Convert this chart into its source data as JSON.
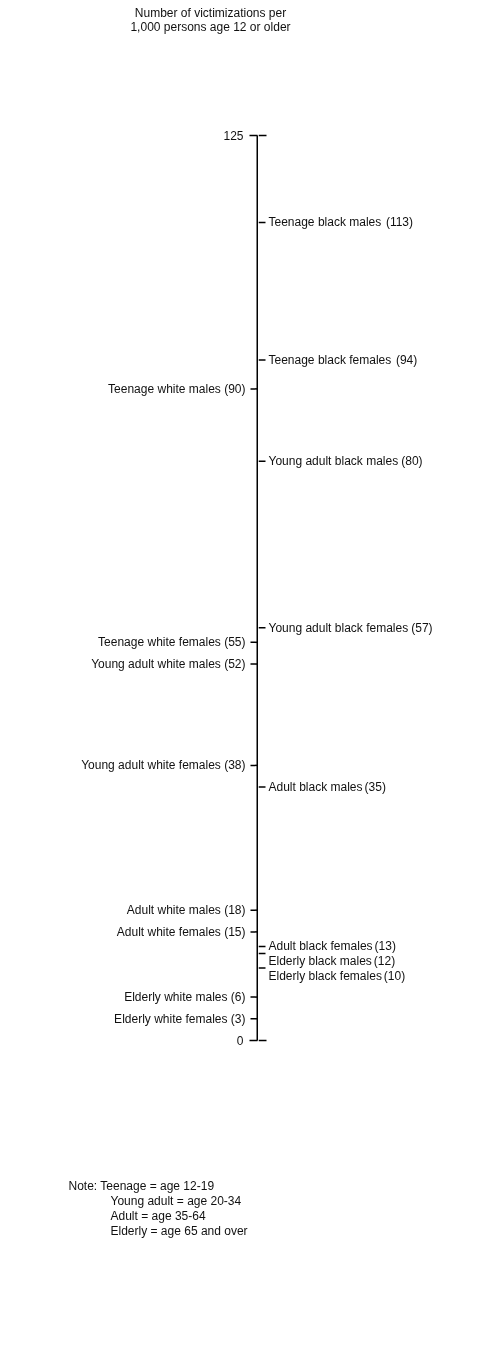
{
  "chart_data": [
    {
      "type": "other",
      "title": "Number of victimizations per\n1,000 persons age 12 or older",
      "categories": [
        "Teenage white males",
        "Teenage white females",
        "Young adult white males",
        "Young adult white females",
        "Adult white males",
        "Adult white females",
        "Elderly white males",
        "Elderly white females"
      ],
      "values": [
        90,
        55,
        52,
        38,
        18,
        15,
        6,
        3
      ],
      "value_labels": [
        "(90)",
        "(55)",
        "(52)",
        "(38)",
        "(18)",
        "(15)",
        "(6)",
        "(3)"
      ],
      "annotations": [
        "125",
        "0"
      ]
    },
    {
      "type": "other",
      "categories": [
        "Teenage black males",
        "Teenage black females",
        "Young adult black males",
        "Young adult black females",
        "Adult black males",
        "Adult black females",
        "Elderly black males",
        "Elderly black females"
      ],
      "values": [
        113,
        94,
        80,
        57,
        35,
        13,
        12,
        10
      ],
      "value_labels": [
        "(113)",
        "(94)",
        "(80)",
        "(57)",
        "(35)",
        "(13)",
        "(12)",
        "(10)"
      ],
      "annotations": [
        "Note: Teenage = age 12-19",
        "Young adult = age 20-34",
        "Adult = age 35-64",
        "Elderly = age 65 and over"
      ]
    }
  ]
}
